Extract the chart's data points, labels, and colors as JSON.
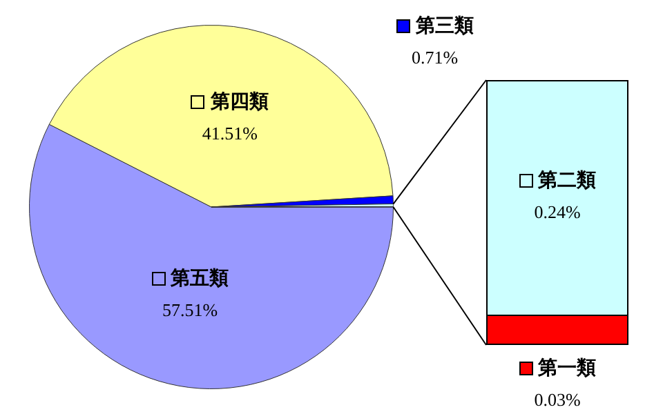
{
  "chart_data": {
    "type": "pie",
    "categories": [
      "第五類",
      "第四類",
      "第三類",
      "第二類",
      "第一類"
    ],
    "values": [
      57.51,
      41.51,
      0.71,
      0.24,
      0.03
    ],
    "colors": [
      "#9999ff",
      "#ffff99",
      "#0000ff",
      "#ccffff",
      "#ff0000"
    ],
    "value_labels": [
      "57.51%",
      "41.51%",
      "0.71%",
      "0.24%",
      "0.03%"
    ],
    "legend": "right"
  }
}
